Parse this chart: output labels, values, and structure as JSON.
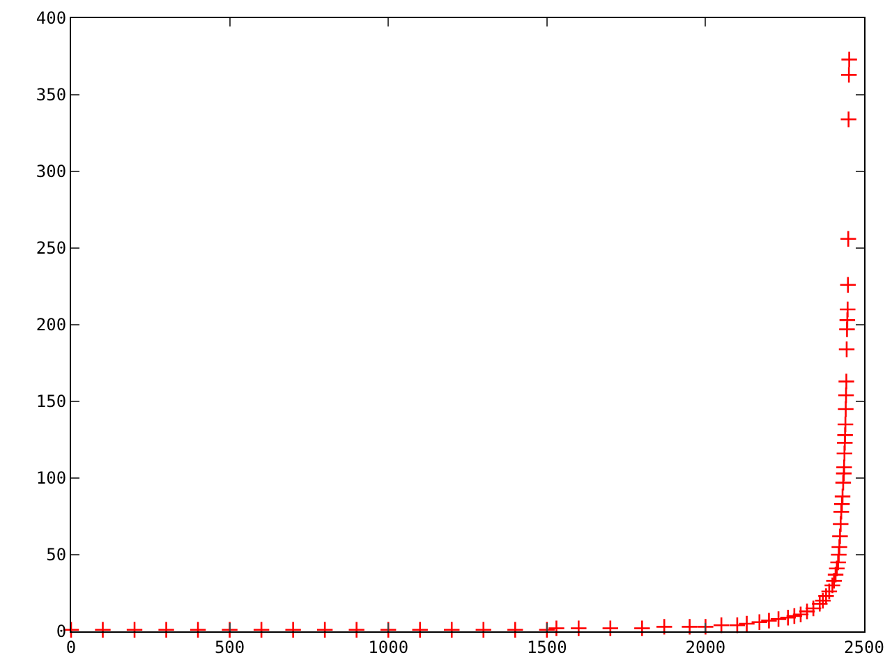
{
  "chart_data": {
    "type": "scatter",
    "marker": "cross",
    "grid": false,
    "x": [
      0,
      100,
      200,
      300,
      400,
      500,
      600,
      700,
      800,
      900,
      1000,
      1100,
      1200,
      1300,
      1400,
      1500,
      1530,
      1600,
      1700,
      1800,
      1870,
      1950,
      2000,
      2050,
      2100,
      2130,
      2170,
      2200,
      2230,
      2260,
      2280,
      2300,
      2320,
      2340,
      2360,
      2370,
      2380,
      2390,
      2400,
      2405,
      2410,
      2414,
      2418,
      2420,
      2422,
      2424,
      2426,
      2428,
      2430,
      2432,
      2434,
      2436,
      2437,
      2438,
      2439,
      2440,
      2441,
      2442,
      2443,
      2444,
      2445,
      2446,
      2447,
      2448,
      2449,
      2450,
      2451,
      2452,
      2453
    ],
    "series": [
      {
        "color": "#ff0000",
        "values": [
          1,
          1,
          1,
          1,
          1,
          1,
          1,
          1,
          1,
          1,
          1,
          1,
          1,
          1,
          1,
          1,
          2,
          2,
          2,
          2,
          3,
          3,
          3,
          4,
          4,
          5,
          6,
          7,
          8,
          9,
          10,
          11,
          13,
          15,
          18,
          20,
          23,
          26,
          30,
          33,
          37,
          41,
          45,
          50,
          55,
          62,
          70,
          78,
          83,
          88,
          97,
          103,
          107,
          116,
          123,
          128,
          135,
          145,
          154,
          163,
          184,
          197,
          203,
          210,
          226,
          256,
          334,
          363,
          373
        ]
      }
    ],
    "xlim": [
      0,
      2500
    ],
    "xticks": [
      0,
      500,
      1000,
      1500,
      2000,
      2500
    ],
    "ylim": [
      0,
      400
    ],
    "yticks": [
      0,
      50,
      100,
      150,
      200,
      250,
      300,
      350,
      400
    ]
  }
}
